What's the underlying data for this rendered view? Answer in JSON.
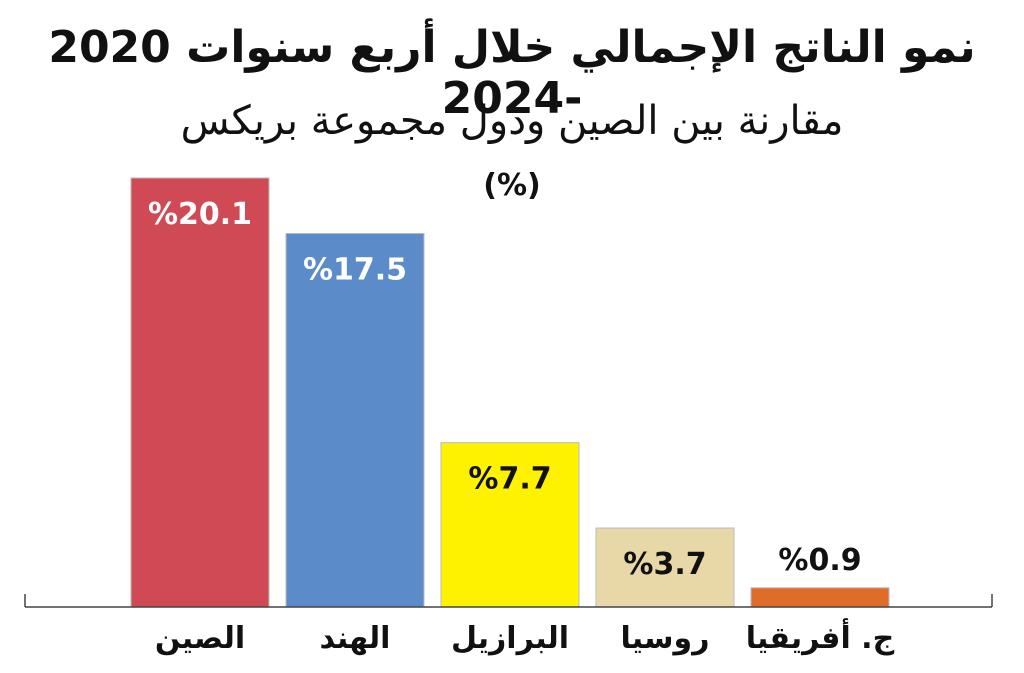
{
  "chart_data": {
    "type": "bar",
    "title": "نمو الناتج الإجمالي خلال أربع سنوات 2020 -2024",
    "subtitle": "مقارنة بين الصين ودول مجموعة بريكس",
    "unit": "(%)",
    "categories": [
      "الصين",
      "الهند",
      "البرازيل",
      "روسيا",
      "ج. أفريقيا"
    ],
    "values": [
      20.1,
      17.5,
      7.7,
      3.7,
      0.9
    ],
    "value_labels": [
      "%20.1",
      "%17.5",
      "%7.7",
      "%3.7",
      "%0.9"
    ],
    "colors": [
      "#d04a55",
      "#5b8cc9",
      "#fff200",
      "#e8d8a8",
      "#e06c2a"
    ],
    "label_colors": [
      "#ffffff",
      "#ffffff",
      "#111111",
      "#111111",
      "#111111"
    ],
    "ylim": [
      0,
      20.1
    ],
    "grid": false,
    "legend": "none"
  }
}
